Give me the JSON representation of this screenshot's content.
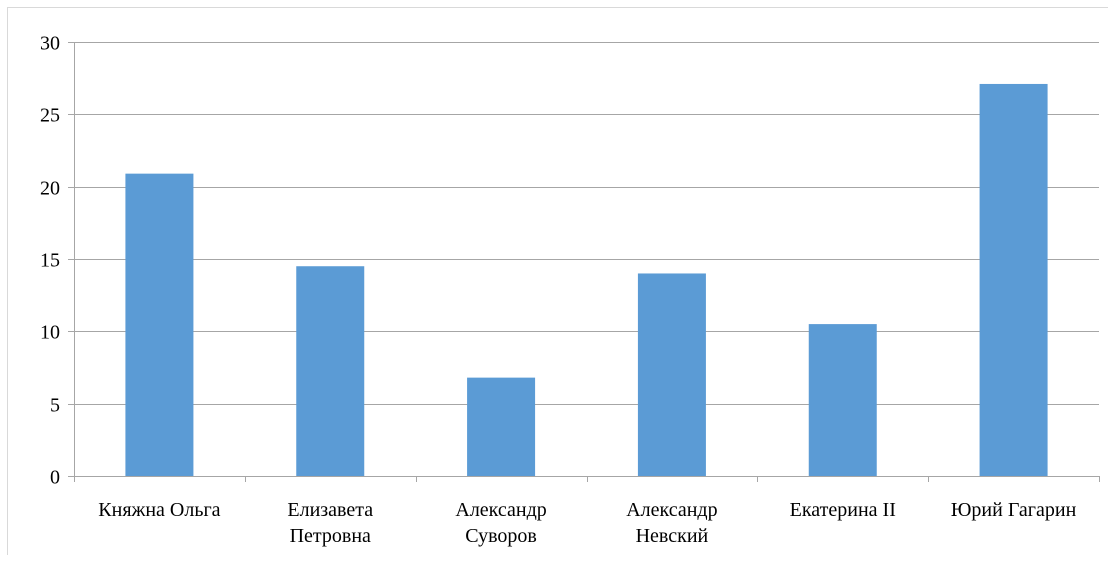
{
  "chart_data": {
    "type": "bar",
    "categories": [
      [
        "Княжна Ольга"
      ],
      [
        "Елизавета",
        "Петровна"
      ],
      [
        "Александр",
        "Суворов"
      ],
      [
        "Александр",
        "Невский"
      ],
      [
        "Екатерина II"
      ],
      [
        "Юрий Гагарин"
      ]
    ],
    "values": [
      20.9,
      14.5,
      6.8,
      14.0,
      10.5,
      27.1
    ],
    "ylim": [
      0,
      30
    ],
    "yticks": [
      "0",
      "5",
      "10",
      "15",
      "20",
      "25",
      "30"
    ],
    "ytick_values": [
      0,
      5,
      10,
      15,
      20,
      25,
      30
    ],
    "grid": true,
    "bar_color": "#5b9bd5",
    "grid_color": "#a6a6a6"
  }
}
